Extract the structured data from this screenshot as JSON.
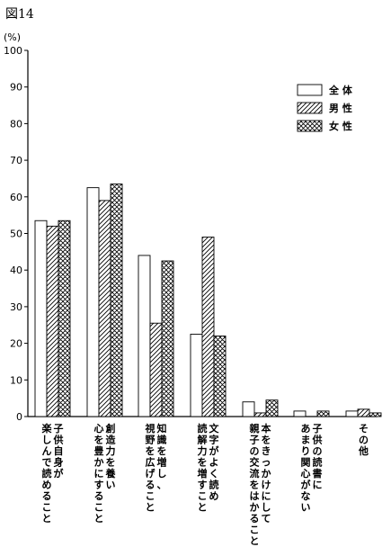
{
  "figure_label": "図14",
  "chart_data": {
    "type": "bar",
    "unit_label": "(%)",
    "ylim": [
      0,
      100
    ],
    "y_ticks": [
      0,
      10,
      20,
      30,
      40,
      50,
      60,
      70,
      80,
      90,
      100
    ],
    "grid": false,
    "legend_position": "top-right",
    "categories": [
      [
        "子供自身が",
        "楽しんで読めること"
      ],
      [
        "創造力を養い",
        "心を豊かにすること"
      ],
      [
        "知識を増し、",
        "視野を広げること"
      ],
      [
        "文字がよく読め",
        "読解力を増すこと"
      ],
      [
        "本をきっかけにして",
        "親子の交流をはかること"
      ],
      [
        "子供の読書に",
        "あまり関心がない"
      ],
      [
        "その他"
      ]
    ],
    "series": [
      {
        "name": "全 体",
        "pattern": "solid",
        "values": [
          53.5,
          62.5,
          44,
          22.5,
          4,
          1.5,
          1.5
        ]
      },
      {
        "name": "男 性",
        "pattern": "hatch",
        "values": [
          52,
          59,
          25.5,
          49,
          1,
          0,
          2
        ]
      },
      {
        "name": "女 性",
        "pattern": "crosshatch",
        "values": [
          53.5,
          63.5,
          42.5,
          22,
          4.5,
          1.5,
          1
        ]
      }
    ]
  }
}
